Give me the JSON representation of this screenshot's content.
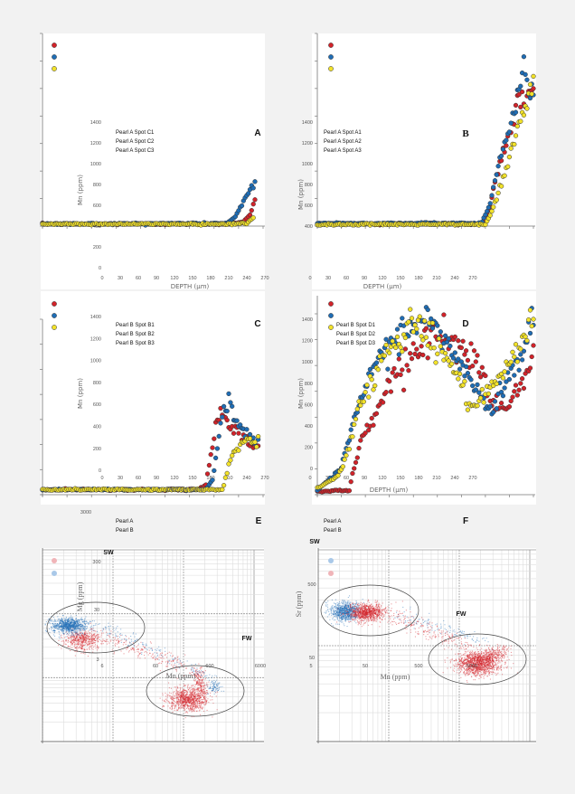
{
  "colors": {
    "red": "#d2232a",
    "blue": "#1f6db5",
    "yellow": "#f2e22a",
    "pink_light": "#f0b4b8",
    "blue_light": "#a9c8e8",
    "outline": "#333333",
    "background": "#f2f2f2"
  },
  "chart_data": [
    {
      "type": "scatter",
      "letter": "A",
      "xlabel": "DEPTH (µm)",
      "ylabel": "Mn (ppm)",
      "xlim": [
        0,
        270
      ],
      "ylim": [
        0,
        1400
      ],
      "xticks": [
        "0",
        "30",
        "60",
        "90",
        "120",
        "150",
        "180",
        "210",
        "240",
        "270"
      ],
      "yticks": [
        "1400",
        "1200",
        "1000",
        "800",
        "600",
        "400",
        "200",
        "0"
      ],
      "series": [
        {
          "name": "Pearl A Spot C1",
          "color": "#d2232a",
          "points": [
            [
              0,
              15
            ],
            [
              230,
              15
            ],
            [
              245,
              30
            ],
            [
              255,
              90
            ],
            [
              260,
              200
            ]
          ]
        },
        {
          "name": "Pearl A Spot C2",
          "color": "#1f6db5",
          "points": [
            [
              0,
              15
            ],
            [
              225,
              20
            ],
            [
              235,
              60
            ],
            [
              245,
              160
            ],
            [
              255,
              270
            ],
            [
              260,
              320
            ]
          ]
        },
        {
          "name": "Pearl A Spot C3",
          "color": "#f2e22a",
          "points": [
            [
              0,
              15
            ],
            [
              225,
              15
            ],
            [
              250,
              20
            ],
            [
              258,
              60
            ]
          ]
        }
      ]
    },
    {
      "type": "scatter",
      "letter": "B",
      "xlabel": "DEPTH (µm)",
      "ylabel": "Mn (ppm)",
      "xlim": [
        0,
        270
      ],
      "ylim": [
        0,
        1400
      ],
      "xticks": [
        "0",
        "30",
        "60",
        "90",
        "120",
        "150",
        "180",
        "210",
        "240",
        "270"
      ],
      "yticks": [
        "1400",
        "1200",
        "1000",
        "800",
        "600",
        "400"
      ],
      "series": [
        {
          "name": "Pearl A Spot A1",
          "color": "#d2232a",
          "points": [
            [
              0,
              15
            ],
            [
              205,
              15
            ],
            [
              215,
              120
            ],
            [
              225,
              380
            ],
            [
              235,
              560
            ],
            [
              245,
              780
            ],
            [
              255,
              920
            ],
            [
              262,
              960
            ],
            [
              270,
              1000
            ]
          ]
        },
        {
          "name": "Pearl A Spot A2",
          "color": "#1f6db5",
          "points": [
            [
              0,
              20
            ],
            [
              205,
              20
            ],
            [
              215,
              150
            ],
            [
              225,
              420
            ],
            [
              235,
              620
            ],
            [
              245,
              800
            ],
            [
              252,
              950
            ],
            [
              258,
              1150
            ],
            [
              265,
              970
            ],
            [
              270,
              950
            ]
          ]
        },
        {
          "name": "Pearl A Spot A3",
          "color": "#f2e22a",
          "points": [
            [
              0,
              12
            ],
            [
              210,
              12
            ],
            [
              218,
              100
            ],
            [
              228,
              280
            ],
            [
              238,
              450
            ],
            [
              248,
              650
            ],
            [
              256,
              820
            ],
            [
              262,
              900
            ],
            [
              270,
              1030
            ]
          ]
        }
      ]
    },
    {
      "type": "scatter",
      "letter": "C",
      "xlabel": "DEPTH (µm)",
      "ylabel": "Mn (ppm)",
      "xlim": [
        0,
        270
      ],
      "ylim": [
        0,
        1400
      ],
      "xticks": [
        "0",
        "30",
        "60",
        "90",
        "120",
        "150",
        "180",
        "210",
        "240",
        "270"
      ],
      "yticks": [
        "1400",
        "1200",
        "1000",
        "800",
        "600",
        "400",
        "200",
        "0"
      ],
      "series": [
        {
          "name": "Pearl B Spot B1",
          "color": "#d2232a",
          "points": [
            [
              0,
              40
            ],
            [
              190,
              40
            ],
            [
              200,
              80
            ],
            [
              207,
              350
            ],
            [
              213,
              620
            ],
            [
              220,
              650
            ],
            [
              228,
              560
            ],
            [
              240,
              500
            ],
            [
              255,
              400
            ],
            [
              265,
              370
            ]
          ]
        },
        {
          "name": "Pearl B Spot B2",
          "color": "#1f6db5",
          "points": [
            [
              0,
              40
            ],
            [
              200,
              40
            ],
            [
              208,
              120
            ],
            [
              215,
              450
            ],
            [
              222,
              700
            ],
            [
              228,
              740
            ],
            [
              235,
              620
            ],
            [
              242,
              560
            ],
            [
              250,
              480
            ],
            [
              258,
              450
            ],
            [
              265,
              400
            ]
          ]
        },
        {
          "name": "Pearl B Spot B3",
          "color": "#f2e22a",
          "points": [
            [
              0,
              40
            ],
            [
              220,
              40
            ],
            [
              223,
              100
            ],
            [
              230,
              280
            ],
            [
              240,
              380
            ],
            [
              250,
              450
            ],
            [
              258,
              430
            ],
            [
              265,
              400
            ]
          ]
        }
      ]
    },
    {
      "type": "scatter",
      "letter": "D",
      "xlabel": "DEPTH (µm)",
      "ylabel": "Mn (ppm)",
      "xlim": [
        0,
        270
      ],
      "ylim": [
        0,
        1400
      ],
      "xticks": [
        "0",
        "30",
        "60",
        "90",
        "120",
        "150",
        "180",
        "210",
        "240",
        "270"
      ],
      "yticks": [
        "1400",
        "1200",
        "1000",
        "800",
        "600",
        "400",
        "200",
        "0"
      ],
      "series": [
        {
          "name": "Pearl B Spot D1",
          "color": "#d2232a",
          "points": [
            [
              0,
              25
            ],
            [
              40,
              30
            ],
            [
              44,
              152
            ],
            [
              55,
              382
            ],
            [
              67,
              509
            ],
            [
              78,
              636
            ],
            [
              93,
              827
            ],
            [
              112,
              935
            ],
            [
              131,
              1062
            ],
            [
              146,
              1145
            ],
            [
              165,
              1081
            ],
            [
              188,
              1018
            ],
            [
              202,
              890
            ],
            [
              221,
              661
            ],
            [
              236,
              598
            ],
            [
              251,
              763
            ],
            [
              270,
              935
            ]
          ]
        },
        {
          "name": "Pearl B Spot D2",
          "color": "#1f6db5",
          "points": [
            [
              0,
              30
            ],
            [
              29,
              172
            ],
            [
              44,
              490
            ],
            [
              70,
              890
            ],
            [
              93,
              1081
            ],
            [
              132,
              1253
            ],
            [
              153,
              1126
            ],
            [
              176,
              954
            ],
            [
              199,
              725
            ],
            [
              217,
              572
            ],
            [
              236,
              808
            ],
            [
              255,
              980
            ],
            [
              270,
              1234
            ]
          ]
        },
        {
          "name": "Pearl B Spot D3",
          "color": "#f2e22a",
          "points": [
            [
              0,
              45
            ],
            [
              25,
              127
            ],
            [
              41,
              343
            ],
            [
              50,
              598
            ],
            [
              63,
              744
            ],
            [
              81,
              954
            ],
            [
              101,
              1107
            ],
            [
              121,
              1240
            ],
            [
              138,
              1107
            ],
            [
              157,
              1018
            ],
            [
              176,
              808
            ],
            [
              191,
              636
            ],
            [
              213,
              681
            ],
            [
              233,
              852
            ],
            [
              251,
              1018
            ],
            [
              270,
              1209
            ]
          ]
        }
      ]
    },
    {
      "type": "scatter",
      "letter": "E",
      "scale": "log-log",
      "xlabel": "Mn (ppm)",
      "ylabel": "Mg (ppm)",
      "xlim": [
        6,
        6000
      ],
      "ylim": [
        3,
        3000
      ],
      "xticks": [
        "6",
        "60",
        "600",
        "6000"
      ],
      "yticks": [
        "3000",
        "300",
        "30",
        "3"
      ],
      "regions": [
        "SW",
        "FW"
      ],
      "series": [
        {
          "name": "Pearl A",
          "color": "#d2232a",
          "legend_color": "#f0b4b8",
          "clusters": [
            {
              "region": "SW",
              "center": [
                22,
                120
              ],
              "spread_log10": [
                0.13,
                0.08
              ],
              "approx_points": 500
            },
            {
              "region": "transition",
              "from": [
                30,
                150
              ],
              "to": [
                600,
                45
              ],
              "spread_log10": [
                0.07,
                0.06
              ],
              "approx_points": 220
            },
            {
              "region": "FW",
              "center": [
                700,
                14
              ],
              "spread_log10": [
                0.14,
                0.09
              ],
              "approx_points": 900
            },
            {
              "region": "FW",
              "from": [
                900,
                40
              ],
              "to": [
                1100,
                18
              ],
              "spread_log10": [
                0.05,
                0.05
              ],
              "approx_points": 200
            }
          ]
        },
        {
          "name": "Pearl B",
          "color": "#1f6db5",
          "legend_color": "#a9c8e8",
          "clusters": [
            {
              "region": "SW",
              "center": [
                14,
                200
              ],
              "spread_log10": [
                0.12,
                0.06
              ],
              "approx_points": 900
            },
            {
              "region": "transition",
              "from": [
                30,
                230
              ],
              "to": [
                1500,
                30
              ],
              "spread_log10": [
                0.06,
                0.04
              ],
              "approx_points": 160
            },
            {
              "region": "FW",
              "center": [
                1600,
                22
              ],
              "spread_log10": [
                0.05,
                0.05
              ],
              "approx_points": 80
            }
          ]
        }
      ]
    },
    {
      "type": "scatter",
      "letter": "F",
      "scale": "log-log",
      "xlabel": "Mn (ppm)",
      "ylabel": "Sr (ppm)",
      "xlim": [
        5,
        5000
      ],
      "ylim": [
        5,
        500
      ],
      "xticks": [
        "5",
        "50",
        "500",
        "5000"
      ],
      "yticks": [
        "500",
        "50"
      ],
      "regions": [
        "SW",
        "FW"
      ],
      "series": [
        {
          "name": "Pearl A",
          "color": "#1f6db5",
          "legend_color": "#a9c8e8",
          "clusters": [
            {
              "region": "SW",
              "center": [
                12,
                115
              ],
              "spread_log10": [
                0.1,
                0.05
              ],
              "approx_points": 800
            },
            {
              "region": "transition",
              "from": [
                60,
                110
              ],
              "to": [
                1300,
                55
              ],
              "spread_log10": [
                0.07,
                0.04
              ],
              "approx_points": 120
            }
          ]
        },
        {
          "name": "Pearl B",
          "color": "#d2232a",
          "legend_color": "#f0b4b8",
          "clusters": [
            {
              "region": "SW",
              "center": [
                24,
                112
              ],
              "spread_log10": [
                0.12,
                0.045
              ],
              "approx_points": 900
            },
            {
              "region": "transition",
              "from": [
                40,
                115
              ],
              "to": [
                600,
                50
              ],
              "spread_log10": [
                0.07,
                0.05
              ],
              "approx_points": 220
            },
            {
              "region": "FW",
              "center": [
                900,
                33
              ],
              "spread_log10": [
                0.15,
                0.06
              ],
              "approx_points": 1200
            },
            {
              "region": "FW",
              "from": [
                900,
                35
              ],
              "to": [
                2200,
                45
              ],
              "spread_log10": [
                0.06,
                0.04
              ],
              "approx_points": 300
            }
          ]
        }
      ]
    }
  ]
}
